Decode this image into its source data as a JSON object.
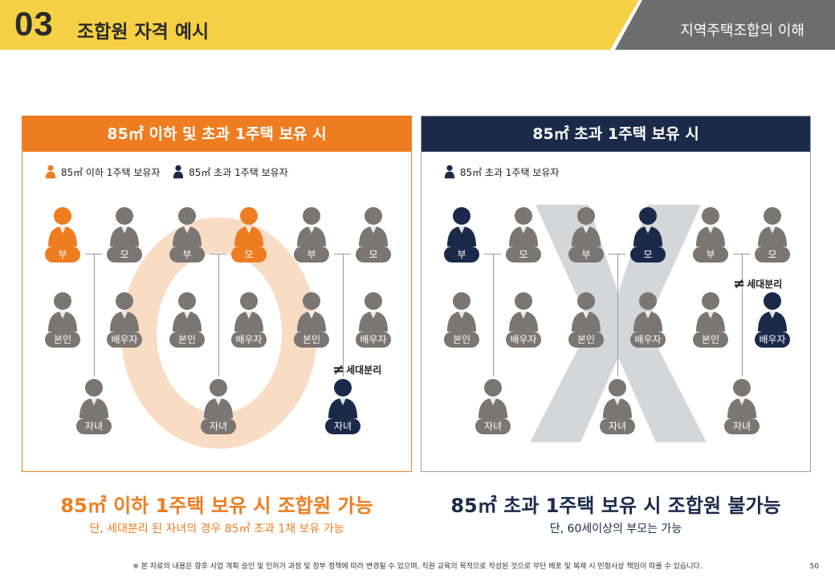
{
  "header": {
    "number": "03",
    "title": "조합원 자격 예시",
    "section": "지역주택조합의 이해"
  },
  "colors": {
    "orange": "#ee7d21",
    "navy": "#1c2a4a",
    "gray": "#7b7574",
    "yellow": "#f6d044",
    "darkgray": "#6e6d6d"
  },
  "left": {
    "title": "85㎡ 이하 및 초과 1주택 보유 시",
    "legend_a": "85㎡ 이하 1주택 보유자",
    "legend_b": "85㎡ 초과 1주택 보유자",
    "mark": "O",
    "separation": "세대분리",
    "labels": {
      "father": "부",
      "mother": "모",
      "self": "본인",
      "spouse": "배우자",
      "child": "자녀"
    },
    "caption": "85㎡ 이하 1주택 보유 시 조합원 가능",
    "sub": "단, 세대분리 된 자녀의 경우 85㎡ 초과 1채 보유 가능"
  },
  "right": {
    "title": "85㎡ 초과 1주택 보유 시",
    "legend_b": "85㎡ 초과 1주택 보유자",
    "mark": "X",
    "separation": "세대분리",
    "labels": {
      "father": "부",
      "mother": "모",
      "self": "본인",
      "spouse": "배우자",
      "child": "자녀"
    },
    "caption": "85㎡ 초과 1주택 보유 시 조합원 불가능",
    "sub": "단, 60세이상의 부모는 가능"
  },
  "footer": {
    "note": "※ 본 자료의 내용은 향후 사업 계획 승인 및 인허가 과정 및 정부 정책에 따라 변경될 수 있으며, 직원 교육의 목적으로 작성된 것으로 무단 배포 및 복제 시 민형사상 책임이 따를 수 있습니다.",
    "page": "50"
  }
}
